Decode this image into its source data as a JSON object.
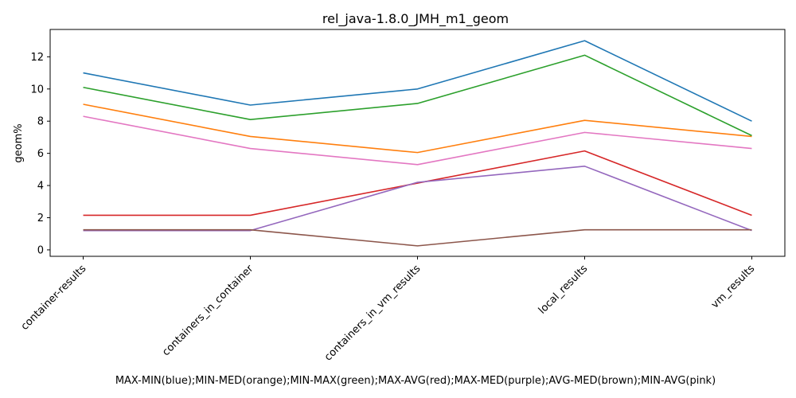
{
  "chart_data": {
    "type": "line",
    "title": "rel_java-1.8.0_JMH_m1_geom",
    "xlabel": "MAX-MIN(blue);MIN-MED(orange);MIN-MAX(green);MAX-AVG(red);MAX-MED(purple);AVG-MED(brown);MIN-AVG(pink)",
    "ylabel": "geom%",
    "categories": [
      "container-results",
      "containers_in_container",
      "containers_in_vm_results",
      "local_results",
      "vm_results"
    ],
    "yticks": [
      0,
      2,
      4,
      6,
      8,
      10,
      12
    ],
    "ylim": [
      -0.4,
      13.7
    ],
    "grid": false,
    "legend": "none",
    "series": [
      {
        "color": "#1f77b4",
        "values": [
          11.0,
          9.0,
          10.0,
          13.0,
          8.0
        ]
      },
      {
        "color": "#ff7f0e",
        "values": [
          9.05,
          7.05,
          6.05,
          8.05,
          7.05
        ]
      },
      {
        "color": "#2ca02c",
        "values": [
          10.1,
          8.1,
          9.1,
          12.1,
          7.1
        ]
      },
      {
        "color": "#d62728",
        "values": [
          2.15,
          2.15,
          4.15,
          6.15,
          2.15
        ]
      },
      {
        "color": "#9467bd",
        "values": [
          1.2,
          1.2,
          4.2,
          5.2,
          1.2
        ]
      },
      {
        "color": "#8c564b",
        "values": [
          1.25,
          1.25,
          0.25,
          1.25,
          1.25
        ]
      },
      {
        "color": "#e377c2",
        "values": [
          8.3,
          6.3,
          5.3,
          7.3,
          6.3
        ]
      }
    ]
  }
}
